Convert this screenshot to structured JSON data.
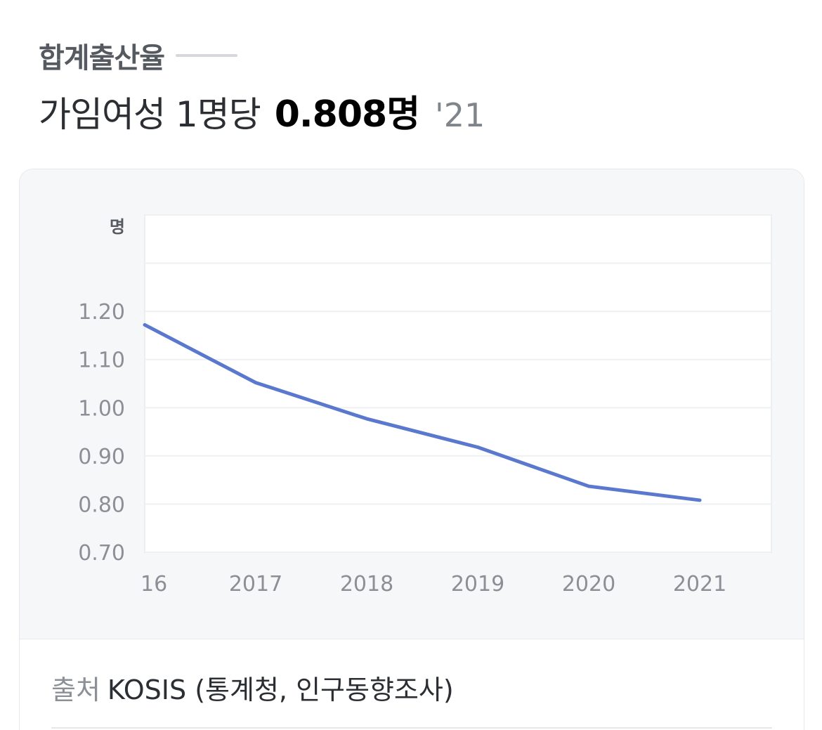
{
  "header": {
    "label": "합계출산율",
    "value_prefix": "가임여성 1명당",
    "value_strong": "0.808명",
    "value_year": "'21"
  },
  "source": {
    "label": "출처",
    "value": "KOSIS (통계청, 인구동향조사)"
  },
  "chart_data": {
    "type": "line",
    "categories": [
      "2016",
      "2017",
      "2018",
      "2019",
      "2020",
      "2021"
    ],
    "x_tick_labels": [
      "16",
      "2017",
      "2018",
      "2019",
      "2020",
      "2021"
    ],
    "series": [
      {
        "values": [
          1.172,
          1.052,
          0.977,
          0.918,
          0.837,
          0.808
        ],
        "color": "#5b78cf"
      }
    ],
    "y_unit": "명",
    "y_ticks": [
      "0.70",
      "0.80",
      "0.90",
      "1.00",
      "1.10",
      "1.20"
    ],
    "ylim": [
      0.7,
      1.4
    ],
    "grid": true,
    "colors": {
      "line": "#5b78cf",
      "plot_background": "#ffffff",
      "card_background": "#f6f7f9",
      "grid": "#eef0f2"
    }
  }
}
